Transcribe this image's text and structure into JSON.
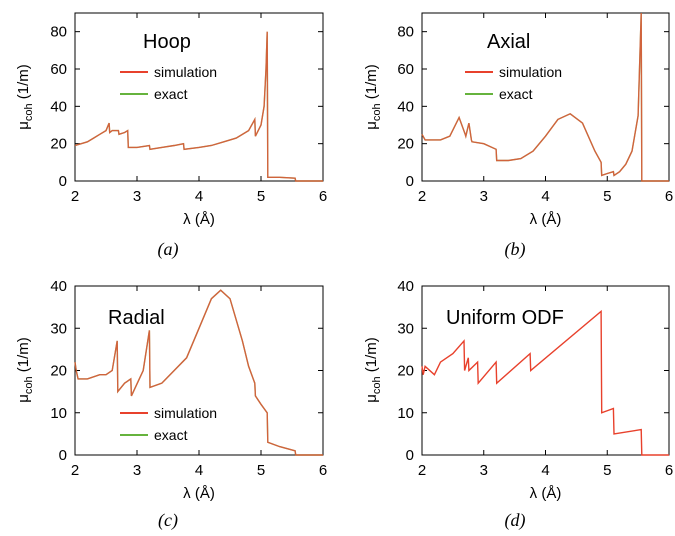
{
  "chart_data": [
    {
      "type": "line",
      "title": "Hoop",
      "caption": "(a)",
      "xlabel": "λ (Å)",
      "ylabel_main": "μ",
      "ylabel_sub": "coh",
      "ylabel_unit": "(1/m)",
      "xlim": [
        2,
        6
      ],
      "ylim": [
        0,
        90
      ],
      "xticks": [
        2,
        3,
        4,
        5,
        6
      ],
      "yticks": [
        0,
        20,
        40,
        60,
        80
      ],
      "legend_position": "upper-middle",
      "series": [
        {
          "name": "simulation",
          "color": "#e8412c",
          "x": [
            2.0,
            2.1,
            2.2,
            2.3,
            2.4,
            2.5,
            2.55,
            2.56,
            2.6,
            2.7,
            2.71,
            2.8,
            2.85,
            2.86,
            3.0,
            3.2,
            3.21,
            3.4,
            3.6,
            3.75,
            3.76,
            4.0,
            4.2,
            4.4,
            4.6,
            4.8,
            4.9,
            4.91,
            5.0,
            5.05,
            5.08,
            5.1,
            5.11,
            5.3,
            5.55,
            5.56,
            6.0
          ],
          "y": [
            19,
            20,
            21,
            23,
            25,
            27,
            31,
            26,
            27,
            27,
            25,
            26,
            27,
            18,
            18,
            19,
            17,
            18,
            19,
            20,
            17,
            18,
            19,
            21,
            23,
            27,
            33,
            24,
            30,
            40,
            60,
            80,
            2,
            2,
            1.5,
            0,
            0
          ]
        },
        {
          "name": "exact",
          "color": "#66b33d",
          "x": [
            2.0,
            2.1,
            2.2,
            2.3,
            2.4,
            2.5,
            2.55,
            2.56,
            2.6,
            2.7,
            2.71,
            2.8,
            2.85,
            2.86,
            3.0,
            3.2,
            3.21,
            3.4,
            3.6,
            3.75,
            3.76,
            4.0,
            4.2,
            4.4,
            4.6,
            4.8,
            4.9,
            4.91,
            5.0,
            5.05,
            5.08,
            5.1,
            5.11,
            5.3,
            5.55,
            5.56,
            6.0
          ],
          "y": [
            19,
            20,
            21,
            23,
            25,
            27,
            31,
            26,
            27,
            27,
            25,
            26,
            27,
            18,
            18,
            19,
            17,
            18,
            19,
            20,
            17,
            18,
            19,
            21,
            23,
            27,
            33,
            24,
            30,
            40,
            60,
            80,
            2,
            2,
            1.5,
            0,
            0
          ]
        }
      ]
    },
    {
      "type": "line",
      "title": "Axial",
      "caption": "(b)",
      "xlabel": "λ (Å)",
      "ylabel_main": "μ",
      "ylabel_sub": "coh",
      "ylabel_unit": "(1/m)",
      "xlim": [
        2,
        6
      ],
      "ylim": [
        0,
        90
      ],
      "xticks": [
        2,
        3,
        4,
        5,
        6
      ],
      "yticks": [
        0,
        20,
        40,
        60,
        80
      ],
      "legend_position": "upper-middle",
      "series": [
        {
          "name": "simulation",
          "color": "#e8412c",
          "x": [
            2.0,
            2.05,
            2.1,
            2.3,
            2.45,
            2.6,
            2.7,
            2.71,
            2.76,
            2.8,
            2.81,
            3.0,
            3.2,
            3.21,
            3.4,
            3.6,
            3.8,
            4.0,
            4.2,
            4.4,
            4.6,
            4.8,
            4.9,
            4.91,
            5.0,
            5.1,
            5.11,
            5.2,
            5.3,
            5.4,
            5.5,
            5.55,
            5.56,
            6.0
          ],
          "y": [
            25,
            22,
            22,
            22,
            24,
            34,
            25,
            24,
            31,
            22,
            21,
            20,
            17,
            11,
            11,
            12,
            16,
            24,
            33,
            36,
            31,
            16,
            10,
            3,
            4,
            5,
            3,
            5,
            9,
            16,
            35,
            90,
            0,
            0
          ]
        },
        {
          "name": "exact",
          "color": "#66b33d",
          "x": [
            2.0,
            2.05,
            2.1,
            2.3,
            2.45,
            2.6,
            2.7,
            2.71,
            2.76,
            2.8,
            2.81,
            3.0,
            3.2,
            3.21,
            3.4,
            3.6,
            3.8,
            4.0,
            4.2,
            4.4,
            4.6,
            4.8,
            4.9,
            4.91,
            5.0,
            5.1,
            5.11,
            5.2,
            5.3,
            5.4,
            5.5,
            5.55,
            5.56,
            6.0
          ],
          "y": [
            25,
            22,
            22,
            22,
            24,
            34,
            25,
            24,
            31,
            22,
            21,
            20,
            17,
            11,
            11,
            12,
            16,
            24,
            33,
            36,
            31,
            16,
            10,
            3,
            4,
            5,
            3,
            5,
            9,
            16,
            35,
            90,
            0,
            0
          ]
        }
      ]
    },
    {
      "type": "line",
      "title": "Radial",
      "caption": "(c)",
      "xlabel": "λ (Å)",
      "ylabel_main": "μ",
      "ylabel_sub": "coh",
      "ylabel_unit": "(1/m)",
      "xlim": [
        2,
        6
      ],
      "ylim": [
        0,
        40
      ],
      "xticks": [
        2,
        3,
        4,
        5,
        6
      ],
      "yticks": [
        0,
        10,
        20,
        30,
        40
      ],
      "legend_position": "lower-left",
      "series": [
        {
          "name": "simulation",
          "color": "#e8412c",
          "x": [
            2.0,
            2.02,
            2.05,
            2.2,
            2.4,
            2.5,
            2.6,
            2.68,
            2.69,
            2.8,
            2.9,
            2.91,
            3.1,
            3.2,
            3.21,
            3.4,
            3.6,
            3.8,
            4.0,
            4.2,
            4.35,
            4.5,
            4.7,
            4.8,
            4.9,
            4.91,
            5.0,
            5.1,
            5.11,
            5.3,
            5.55,
            5.56,
            6.0
          ],
          "y": [
            22,
            20,
            18,
            18,
            19,
            19,
            20,
            27,
            15,
            17,
            18,
            14,
            20,
            29.5,
            16,
            17,
            20,
            23,
            30,
            37,
            39,
            37,
            27,
            21,
            17,
            14,
            12,
            10,
            3,
            2,
            1,
            0,
            0
          ]
        },
        {
          "name": "exact",
          "color": "#66b33d",
          "x": [
            2.0,
            2.02,
            2.05,
            2.2,
            2.4,
            2.5,
            2.6,
            2.68,
            2.69,
            2.8,
            2.9,
            2.91,
            3.1,
            3.2,
            3.21,
            3.4,
            3.6,
            3.8,
            4.0,
            4.2,
            4.35,
            4.5,
            4.7,
            4.8,
            4.9,
            4.91,
            5.0,
            5.1,
            5.11,
            5.3,
            5.55,
            5.56,
            6.0
          ],
          "y": [
            22,
            20,
            18,
            18,
            19,
            19,
            20,
            27,
            15,
            17,
            18,
            14,
            20,
            29.5,
            16,
            17,
            20,
            23,
            30,
            37,
            39,
            37,
            27,
            21,
            17,
            14,
            12,
            10,
            3,
            2,
            1,
            0,
            0
          ]
        }
      ]
    },
    {
      "type": "line",
      "title": "Uniform ODF",
      "caption": "(d)",
      "xlabel": "λ (Å)",
      "ylabel_main": "μ",
      "ylabel_sub": "coh",
      "ylabel_unit": "(1/m)",
      "xlim": [
        2,
        6
      ],
      "ylim": [
        0,
        40
      ],
      "xticks": [
        2,
        3,
        4,
        5,
        6
      ],
      "yticks": [
        0,
        10,
        20,
        30,
        40
      ],
      "series": [
        {
          "color": "#e8412c",
          "x": [
            2.0,
            2.02,
            2.05,
            2.2,
            2.3,
            2.5,
            2.68,
            2.69,
            2.75,
            2.76,
            2.9,
            2.91,
            3.2,
            3.21,
            3.75,
            3.76,
            4.9,
            4.91,
            5.1,
            5.11,
            5.55,
            5.56,
            6.0
          ],
          "y": [
            21,
            19,
            21,
            19,
            22,
            24,
            27,
            20,
            23,
            20,
            22,
            17,
            22,
            17,
            24,
            20,
            34,
            10,
            11,
            5,
            6,
            0,
            0
          ]
        }
      ]
    }
  ]
}
